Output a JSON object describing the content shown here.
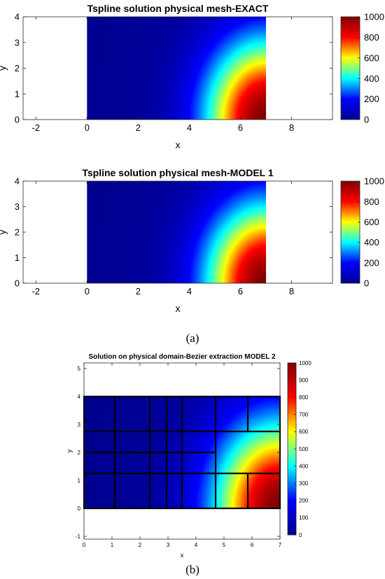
{
  "figure": {
    "caption_a": "(a)",
    "caption_b": "(b)"
  },
  "colors": {
    "colormap": "jet",
    "colormap_stops": [
      "#00008f",
      "#0000ff",
      "#00ffff",
      "#ffff00",
      "#ff0000",
      "#800000"
    ],
    "mesh_lines": "#000000"
  },
  "chart_data": [
    {
      "type": "heatmap",
      "title": "Tspline solution physical mesh-EXACT",
      "xlabel": "x",
      "ylabel": "y",
      "xlim": [
        -2.5,
        9.6
      ],
      "ylim": [
        0,
        4
      ],
      "xticks": [
        -2,
        0,
        2,
        4,
        6,
        8
      ],
      "yticks": [
        0,
        1,
        2,
        3,
        4
      ],
      "domain": {
        "x": [
          0,
          7
        ],
        "y": [
          0,
          4
        ]
      },
      "field": "value rises from 0 at the left/top region to 1000 at the bottom-right corner (x=7, y=0)",
      "colorbar": {
        "min": 0,
        "max": 1000,
        "ticks": [
          0,
          200,
          400,
          600,
          800,
          1000
        ]
      }
    },
    {
      "type": "heatmap",
      "title": "Tspline solution physical mesh-MODEL 1",
      "xlabel": "x",
      "ylabel": "y",
      "xlim": [
        -2.5,
        9.6
      ],
      "ylim": [
        0,
        4
      ],
      "xticks": [
        -2,
        0,
        2,
        4,
        6,
        8
      ],
      "yticks": [
        0,
        1,
        2,
        3,
        4
      ],
      "domain": {
        "x": [
          0,
          7
        ],
        "y": [
          0,
          4
        ]
      },
      "field": "value rises from 0 at the left/top region to 1000 at the bottom-right corner (x=7, y=0)",
      "colorbar": {
        "min": 0,
        "max": 1000,
        "ticks": [
          0,
          200,
          400,
          600,
          800,
          1000
        ]
      }
    },
    {
      "type": "heatmap",
      "title": "Solution on physical domain-Bezier extraction MODEL 2",
      "xlabel": "x",
      "ylabel": "y",
      "xlim": [
        0,
        7
      ],
      "ylim": [
        -1.1,
        5.2
      ],
      "xticks": [
        0,
        1,
        2,
        3,
        4,
        5,
        6,
        7
      ],
      "yticks": [
        -1,
        0,
        1,
        2,
        3,
        4,
        5
      ],
      "domain": {
        "x": [
          0,
          7
        ],
        "y": [
          0,
          4
        ]
      },
      "field": "value rises from 0 at the left/top region to 1000 at the bottom-right corner (x=7, y=0)",
      "colorbar": {
        "min": 0,
        "max": 1000,
        "ticks": [
          0,
          100,
          200,
          300,
          400,
          500,
          600,
          700,
          800,
          900,
          1000
        ]
      },
      "mesh": {
        "full_vertical_lines_x": [
          1.1,
          2.35,
          2.95,
          3.5
        ],
        "vertical_segments": [
          {
            "x": 4.7,
            "y": [
              0,
              2.75
            ]
          },
          {
            "x": 4.7,
            "y": [
              2.75,
              4
            ]
          },
          {
            "x": 5.85,
            "y": [
              0,
              1.25
            ]
          },
          {
            "x": 5.85,
            "y": [
              2.75,
              4
            ]
          }
        ],
        "full_horizontal_lines_y": [
          1.25,
          2.75
        ],
        "horizontal_segments": [
          {
            "y": 2.0,
            "x": [
              0,
              4.7
            ]
          }
        ]
      }
    }
  ]
}
